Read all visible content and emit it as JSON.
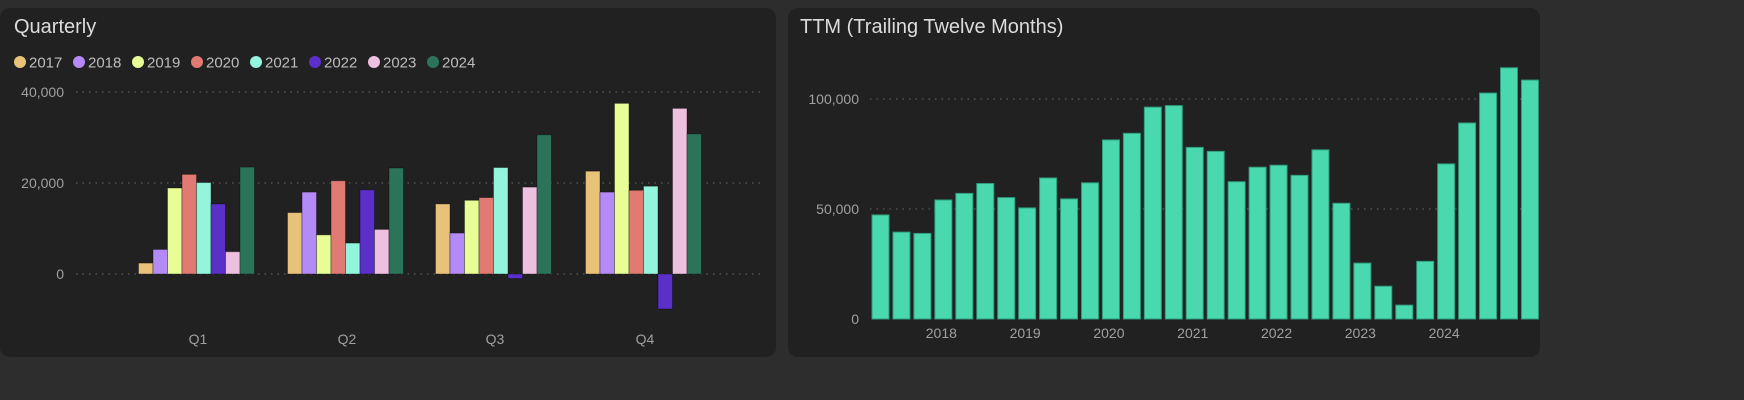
{
  "chart_data": [
    {
      "type": "bar",
      "title": "Quarterly",
      "categories": [
        "Q1",
        "Q2",
        "Q3",
        "Q4"
      ],
      "yticks": [
        "40,000",
        "20,000",
        "0"
      ],
      "ytick_values": [
        40000,
        20000,
        0
      ],
      "ylim": [
        -9000,
        42000
      ],
      "legend_position": "top-left",
      "series": [
        {
          "name": "2017",
          "color": "#e9c27a",
          "values": [
            2400,
            13500,
            15400,
            22600
          ]
        },
        {
          "name": "2018",
          "color": "#b48af7",
          "values": [
            5400,
            18000,
            9000,
            18000
          ]
        },
        {
          "name": "2019",
          "color": "#e8fd95",
          "values": [
            18900,
            8600,
            16200,
            37500
          ]
        },
        {
          "name": "2020",
          "color": "#e07a72",
          "values": [
            21900,
            20500,
            16800,
            18400
          ]
        },
        {
          "name": "2021",
          "color": "#93f5dc",
          "values": [
            20100,
            6800,
            23400,
            19300
          ]
        },
        {
          "name": "2022",
          "color": "#5a30c8",
          "values": [
            15400,
            18500,
            -1000,
            -7700
          ]
        },
        {
          "name": "2023",
          "color": "#eec0e0",
          "values": [
            4900,
            9800,
            19100,
            36400
          ]
        },
        {
          "name": "2024",
          "color": "#2b745a",
          "values": [
            23500,
            23300,
            30600,
            30800
          ]
        }
      ]
    },
    {
      "type": "bar",
      "title": "TTM (Trailing Twelve Months)",
      "color": "#4ad9ae",
      "yticks": [
        "100,000",
        "50,000",
        "0"
      ],
      "ytick_values": [
        100000,
        50000,
        0
      ],
      "ylim": [
        0,
        118000
      ],
      "xtick_labels": [
        "2018",
        "2019",
        "2020",
        "2021",
        "2022",
        "2023",
        "2024"
      ],
      "values": [
        47300,
        39500,
        38900,
        54100,
        57100,
        61600,
        55200,
        50500,
        64100,
        54600,
        61900,
        81400,
        84400,
        96300,
        97000,
        78000,
        76200,
        62400,
        69000,
        69900,
        65300,
        76900,
        52600,
        25400,
        14900,
        6300,
        26200,
        70500,
        89100,
        102700,
        114200,
        108600
      ]
    }
  ]
}
